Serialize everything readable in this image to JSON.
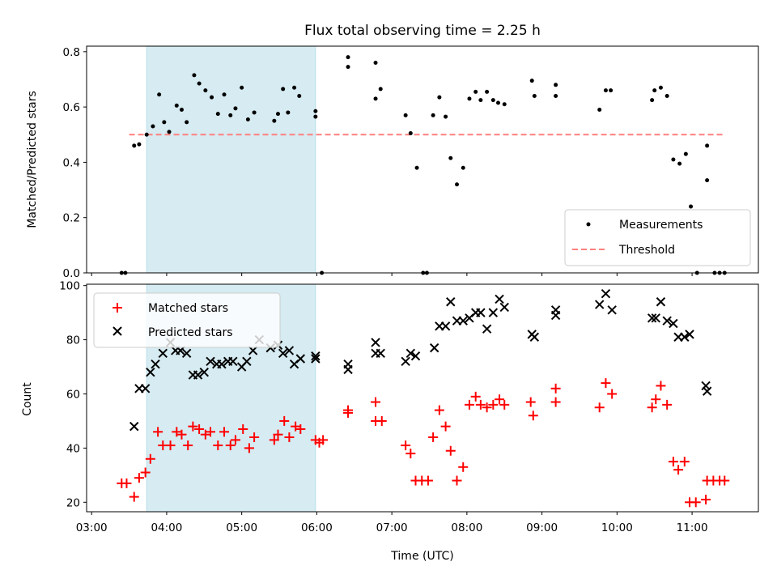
{
  "chart_data": [
    {
      "type": "scatter",
      "title": "Flux total observing time = 2.25 h",
      "xlabel": "",
      "ylabel": "Matched/Predicted stars",
      "xlim": [
        "02:56",
        "11:53"
      ],
      "ylim": [
        0,
        0.82
      ],
      "yticks": [
        "0.0",
        "0.2",
        "0.4",
        "0.6",
        "0.8"
      ],
      "highlight_span": [
        "03:44",
        "05:59"
      ],
      "highlight_color": "#add8e6",
      "threshold": {
        "name": "Threshold",
        "y": 0.5,
        "x_start": "03:30",
        "x_end": "11:25",
        "color": "#ff8080"
      },
      "legend_position": "lower right",
      "legend": [
        "Measurements",
        "Threshold"
      ],
      "series": [
        {
          "name": "Measurements",
          "color": "#000000",
          "points": [
            [
              "03:24",
              0.0
            ],
            [
              "03:27",
              0.0
            ],
            [
              "03:34",
              0.46
            ],
            [
              "03:38",
              0.465
            ],
            [
              "03:44",
              0.5
            ],
            [
              "03:49",
              0.53
            ],
            [
              "03:54",
              0.645
            ],
            [
              "03:58",
              0.545
            ],
            [
              "04:02",
              0.51
            ],
            [
              "04:08",
              0.605
            ],
            [
              "04:12",
              0.59
            ],
            [
              "04:16",
              0.545
            ],
            [
              "04:22",
              0.715
            ],
            [
              "04:26",
              0.685
            ],
            [
              "04:31",
              0.66
            ],
            [
              "04:36",
              0.635
            ],
            [
              "04:41",
              0.575
            ],
            [
              "04:46",
              0.645
            ],
            [
              "04:51",
              0.57
            ],
            [
              "04:55",
              0.595
            ],
            [
              "05:00",
              0.67
            ],
            [
              "05:05",
              0.555
            ],
            [
              "05:10",
              0.58
            ],
            [
              "05:26",
              0.55
            ],
            [
              "05:29",
              0.575
            ],
            [
              "05:33",
              0.665
            ],
            [
              "05:37",
              0.58
            ],
            [
              "05:42",
              0.67
            ],
            [
              "05:46",
              0.64
            ],
            [
              "05:59",
              0.585
            ],
            [
              "05:59",
              0.565
            ],
            [
              "06:04",
              0.0
            ],
            [
              "06:25",
              0.78
            ],
            [
              "06:25",
              0.745
            ],
            [
              "06:47",
              0.76
            ],
            [
              "06:47",
              0.63
            ],
            [
              "06:51",
              0.665
            ],
            [
              "07:11",
              0.57
            ],
            [
              "07:15",
              0.505
            ],
            [
              "07:20",
              0.38
            ],
            [
              "07:25",
              0.0
            ],
            [
              "07:28",
              0.0
            ],
            [
              "07:33",
              0.57
            ],
            [
              "07:38",
              0.635
            ],
            [
              "07:43",
              0.565
            ],
            [
              "07:47",
              0.415
            ],
            [
              "07:52",
              0.32
            ],
            [
              "07:57",
              0.38
            ],
            [
              "08:02",
              0.63
            ],
            [
              "08:07",
              0.655
            ],
            [
              "08:11",
              0.625
            ],
            [
              "08:16",
              0.655
            ],
            [
              "08:21",
              0.625
            ],
            [
              "08:25",
              0.615
            ],
            [
              "08:30",
              0.61
            ],
            [
              "08:52",
              0.695
            ],
            [
              "08:54",
              0.64
            ],
            [
              "09:11",
              0.68
            ],
            [
              "09:11",
              0.64
            ],
            [
              "09:46",
              0.59
            ],
            [
              "09:51",
              0.66
            ],
            [
              "09:55",
              0.66
            ],
            [
              "10:28",
              0.625
            ],
            [
              "10:30",
              0.66
            ],
            [
              "10:35",
              0.67
            ],
            [
              "10:40",
              0.64
            ],
            [
              "10:45",
              0.41
            ],
            [
              "10:50",
              0.395
            ],
            [
              "10:55",
              0.43
            ],
            [
              "10:59",
              0.24
            ],
            [
              "11:04",
              0.0
            ],
            [
              "11:12",
              0.46
            ],
            [
              "11:12",
              0.335
            ],
            [
              "11:18",
              0.0
            ],
            [
              "11:22",
              0.0
            ],
            [
              "11:26",
              0.0
            ]
          ]
        }
      ]
    },
    {
      "type": "scatter",
      "title": "",
      "xlabel": "Time (UTC)",
      "ylabel": "Count",
      "xlim": [
        "02:56",
        "11:53"
      ],
      "ylim": [
        16.5,
        100.5
      ],
      "xticks": [
        "03:00",
        "04:00",
        "05:00",
        "06:00",
        "07:00",
        "08:00",
        "09:00",
        "10:00",
        "11:00"
      ],
      "yticks": [
        "20",
        "40",
        "60",
        "80",
        "100"
      ],
      "highlight_span": [
        "03:44",
        "05:59"
      ],
      "legend_position": "upper left",
      "legend": [
        "Matched stars",
        "Predicted stars"
      ],
      "series": [
        {
          "name": "Matched stars",
          "marker": "+",
          "color": "#ff0000",
          "points": [
            [
              "03:24",
              27
            ],
            [
              "03:28",
              27
            ],
            [
              "03:34",
              22
            ],
            [
              "03:38",
              29
            ],
            [
              "03:43",
              31
            ],
            [
              "03:47",
              36
            ],
            [
              "03:53",
              46
            ],
            [
              "03:57",
              41
            ],
            [
              "04:03",
              41
            ],
            [
              "04:08",
              46
            ],
            [
              "04:12",
              45
            ],
            [
              "04:17",
              41
            ],
            [
              "04:21",
              48
            ],
            [
              "04:26",
              47
            ],
            [
              "04:31",
              45
            ],
            [
              "04:35",
              46
            ],
            [
              "04:41",
              41
            ],
            [
              "04:46",
              46
            ],
            [
              "04:51",
              41
            ],
            [
              "04:55",
              43
            ],
            [
              "05:01",
              47
            ],
            [
              "05:06",
              40
            ],
            [
              "05:10",
              44
            ],
            [
              "05:26",
              43
            ],
            [
              "05:29",
              45
            ],
            [
              "05:34",
              50
            ],
            [
              "05:38",
              44
            ],
            [
              "05:43",
              48
            ],
            [
              "05:47",
              47
            ],
            [
              "05:59",
              43
            ],
            [
              "06:02",
              42
            ],
            [
              "06:05",
              43
            ],
            [
              "06:25",
              54
            ],
            [
              "06:25",
              53
            ],
            [
              "06:47",
              57
            ],
            [
              "06:47",
              50
            ],
            [
              "06:52",
              50
            ],
            [
              "07:11",
              41
            ],
            [
              "07:15",
              38
            ],
            [
              "07:19",
              28
            ],
            [
              "07:24",
              28
            ],
            [
              "07:29",
              28
            ],
            [
              "07:33",
              44
            ],
            [
              "07:38",
              54
            ],
            [
              "07:43",
              48
            ],
            [
              "07:47",
              39
            ],
            [
              "07:52",
              28
            ],
            [
              "07:57",
              33
            ],
            [
              "08:02",
              56
            ],
            [
              "08:07",
              59
            ],
            [
              "08:11",
              56
            ],
            [
              "08:16",
              55
            ],
            [
              "08:21",
              56
            ],
            [
              "08:26",
              58
            ],
            [
              "08:30",
              56
            ],
            [
              "08:51",
              57
            ],
            [
              "08:53",
              52
            ],
            [
              "09:11",
              62
            ],
            [
              "09:11",
              57
            ],
            [
              "09:46",
              55
            ],
            [
              "09:51",
              64
            ],
            [
              "09:56",
              60
            ],
            [
              "10:28",
              55
            ],
            [
              "10:31",
              58
            ],
            [
              "10:35",
              63
            ],
            [
              "10:40",
              56
            ],
            [
              "10:45",
              35
            ],
            [
              "10:49",
              32
            ],
            [
              "10:54",
              35
            ],
            [
              "10:58",
              20
            ],
            [
              "11:03",
              20
            ],
            [
              "11:11",
              21
            ],
            [
              "11:12",
              28
            ],
            [
              "11:17",
              28
            ],
            [
              "11:22",
              28
            ],
            [
              "11:26",
              28
            ]
          ]
        },
        {
          "name": "Predicted stars",
          "marker": "x",
          "color": "#000000",
          "points": [
            [
              "03:34",
              48
            ],
            [
              "03:38",
              62
            ],
            [
              "03:43",
              62
            ],
            [
              "03:47",
              68
            ],
            [
              "03:51",
              71
            ],
            [
              "03:57",
              75
            ],
            [
              "04:03",
              79
            ],
            [
              "04:07",
              76
            ],
            [
              "04:11",
              76
            ],
            [
              "04:16",
              75
            ],
            [
              "04:21",
              67
            ],
            [
              "04:25",
              67
            ],
            [
              "04:30",
              68
            ],
            [
              "04:35",
              72
            ],
            [
              "04:40",
              71
            ],
            [
              "04:44",
              71
            ],
            [
              "04:49",
              72
            ],
            [
              "04:53",
              72
            ],
            [
              "05:00",
              70
            ],
            [
              "05:04",
              72
            ],
            [
              "05:09",
              76
            ],
            [
              "05:14",
              80
            ],
            [
              "05:23",
              77
            ],
            [
              "05:29",
              78
            ],
            [
              "05:33",
              75
            ],
            [
              "05:38",
              76
            ],
            [
              "05:42",
              71
            ],
            [
              "05:47",
              73
            ],
            [
              "05:59",
              74
            ],
            [
              "05:59",
              73
            ],
            [
              "06:25",
              71
            ],
            [
              "06:25",
              69
            ],
            [
              "06:47",
              79
            ],
            [
              "06:47",
              75
            ],
            [
              "06:51",
              75
            ],
            [
              "07:11",
              72
            ],
            [
              "07:15",
              75
            ],
            [
              "07:19",
              74
            ],
            [
              "07:34",
              77
            ],
            [
              "07:38",
              85
            ],
            [
              "07:43",
              85
            ],
            [
              "07:47",
              94
            ],
            [
              "07:52",
              87
            ],
            [
              "07:57",
              87
            ],
            [
              "08:02",
              88
            ],
            [
              "08:07",
              90
            ],
            [
              "08:11",
              90
            ],
            [
              "08:16",
              84
            ],
            [
              "08:21",
              90
            ],
            [
              "08:26",
              95
            ],
            [
              "08:30",
              92
            ],
            [
              "08:52",
              82
            ],
            [
              "08:54",
              81
            ],
            [
              "09:11",
              89
            ],
            [
              "09:11",
              91
            ],
            [
              "09:46",
              93
            ],
            [
              "09:51",
              97
            ],
            [
              "09:56",
              91
            ],
            [
              "10:28",
              88
            ],
            [
              "10:31",
              88
            ],
            [
              "10:35",
              94
            ],
            [
              "10:40",
              87
            ],
            [
              "10:45",
              86
            ],
            [
              "10:49",
              81
            ],
            [
              "10:54",
              81
            ],
            [
              "10:58",
              82
            ],
            [
              "11:11",
              63
            ],
            [
              "11:12",
              61
            ]
          ]
        }
      ]
    }
  ]
}
